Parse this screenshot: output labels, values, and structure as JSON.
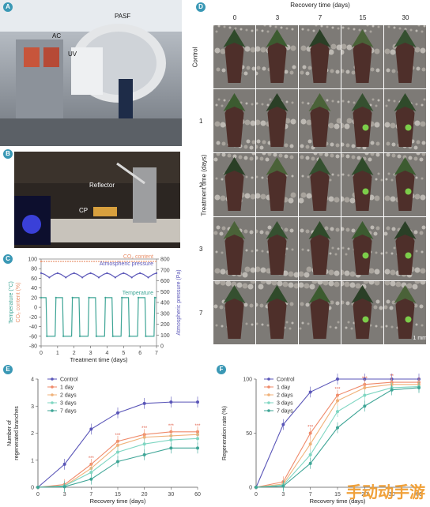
{
  "panels": {
    "a": "A",
    "b": "B",
    "c": "C",
    "d": "D",
    "e": "E",
    "f": "F"
  },
  "panel_a": {
    "labels": [
      "PASF",
      "AC",
      "UV"
    ]
  },
  "panel_b": {
    "labels": [
      "Reflector",
      "CP"
    ]
  },
  "panel_d": {
    "col_title": "Recovery time (days)",
    "cols": [
      "0",
      "3",
      "7",
      "15",
      "30"
    ],
    "row_title": "Treatment time (days)",
    "rows": [
      "Control",
      "1",
      "2",
      "3",
      "7"
    ],
    "scale": "1 mm"
  },
  "watermark": "手动动手游",
  "chart_data": [
    {
      "id": "C",
      "type": "line",
      "xlabel": "Treatment time (days)",
      "ylabel_left": "Temperature (°C)\nCO₂ content (%)",
      "ylabel_right": "Atmospheric pressure (Pa)",
      "xlim": [
        0,
        7
      ],
      "ylim": [
        -80,
        100
      ],
      "ylim_right": [
        0,
        800
      ],
      "xticks": [
        "0",
        "1",
        "2",
        "3",
        "4",
        "5",
        "6",
        "7"
      ],
      "yticks": [
        "-80",
        "-60",
        "-40",
        "-20",
        "0",
        "20",
        "40",
        "60",
        "80",
        "100"
      ],
      "yticks_right": [
        "0",
        "100",
        "200",
        "300",
        "400",
        "500",
        "600",
        "700",
        "800"
      ],
      "series": [
        {
          "name": "CO₂ content",
          "color": "#e8906a",
          "axis": "left",
          "x": [
            0,
            7
          ],
          "y": [
            95,
            95
          ]
        },
        {
          "name": "Atmospheric pressure",
          "color": "#5a56b8",
          "axis": "right",
          "x": [
            0,
            0.2,
            0.5,
            0.8,
            1,
            1.2,
            1.5,
            1.8,
            2,
            2.2,
            2.5,
            2.8,
            3,
            3.2,
            3.5,
            3.8,
            4,
            4.2,
            4.5,
            4.8,
            5,
            5.2,
            5.5,
            5.8,
            6,
            6.2,
            6.5,
            6.8,
            7
          ],
          "y": [
            670,
            660,
            630,
            660,
            670,
            660,
            630,
            660,
            670,
            660,
            630,
            660,
            670,
            660,
            630,
            660,
            670,
            660,
            630,
            660,
            670,
            660,
            630,
            660,
            670,
            660,
            630,
            660,
            670
          ]
        },
        {
          "name": "Temperature",
          "color": "#3ea596",
          "axis": "left",
          "x": [
            0,
            0.3,
            0.35,
            0.85,
            0.9,
            1.3,
            1.35,
            1.85,
            1.9,
            2.3,
            2.35,
            2.85,
            2.9,
            3.3,
            3.35,
            3.85,
            3.9,
            4.3,
            4.35,
            4.85,
            4.9,
            5.3,
            5.35,
            5.85,
            5.9,
            6.3,
            6.35,
            6.85,
            6.9,
            7
          ],
          "y": [
            20,
            20,
            -60,
            -60,
            20,
            20,
            -60,
            -60,
            20,
            20,
            -60,
            -60,
            20,
            20,
            -60,
            -60,
            20,
            20,
            -60,
            -60,
            20,
            20,
            -60,
            -60,
            20,
            20,
            -60,
            -60,
            20,
            20
          ]
        }
      ]
    },
    {
      "id": "E",
      "type": "line",
      "xlabel": "Recovery time (days)",
      "ylabel": "Number of regenerated branches",
      "categories": [
        "0",
        "3",
        "7",
        "15",
        "20",
        "30",
        "60"
      ],
      "ylim": [
        0,
        4
      ],
      "yticks": [
        "0",
        "1",
        "2",
        "3",
        "4"
      ],
      "series": [
        {
          "name": "Control",
          "color": "#5a56b8",
          "values": [
            0,
            0.85,
            2.15,
            2.75,
            3.1,
            3.15,
            3.15
          ]
        },
        {
          "name": "1 day",
          "color": "#ef8a6a",
          "values": [
            0,
            0.1,
            0.85,
            1.7,
            1.95,
            2.05,
            2.05
          ]
        },
        {
          "name": "2 days",
          "color": "#f0b27a",
          "values": [
            0,
            0.05,
            0.7,
            1.55,
            1.85,
            1.9,
            1.95
          ]
        },
        {
          "name": "3 days",
          "color": "#7fd6c2",
          "values": [
            0,
            0.05,
            0.55,
            1.3,
            1.6,
            1.75,
            1.8
          ]
        },
        {
          "name": "7 days",
          "color": "#3ea596",
          "values": [
            0,
            0.02,
            0.3,
            0.95,
            1.2,
            1.45,
            1.45
          ]
        }
      ],
      "annotations": [
        "***",
        "***",
        "***",
        "***",
        "***"
      ]
    },
    {
      "id": "F",
      "type": "line",
      "xlabel": "Recovery time (days)",
      "ylabel": "Regeneration rate (%)",
      "categories": [
        "0",
        "3",
        "7",
        "15",
        "20",
        "30",
        "60"
      ],
      "ylim": [
        0,
        100
      ],
      "yticks": [
        "0",
        "50",
        "100"
      ],
      "series": [
        {
          "name": "Control",
          "color": "#5a56b8",
          "values": [
            0,
            58,
            88,
            100,
            100,
            100,
            100
          ]
        },
        {
          "name": "1 day",
          "color": "#ef8a6a",
          "values": [
            0,
            5,
            50,
            85,
            95,
            97,
            97
          ]
        },
        {
          "name": "2 days",
          "color": "#f0b27a",
          "values": [
            0,
            3,
            40,
            80,
            92,
            95,
            95
          ]
        },
        {
          "name": "3 days",
          "color": "#7fd6c2",
          "values": [
            0,
            2,
            30,
            70,
            85,
            92,
            93
          ]
        },
        {
          "name": "7 days",
          "color": "#3ea596",
          "values": [
            0,
            1,
            22,
            55,
            75,
            90,
            92
          ]
        }
      ],
      "annotations": [
        "***",
        "***",
        "***",
        "**"
      ]
    }
  ]
}
